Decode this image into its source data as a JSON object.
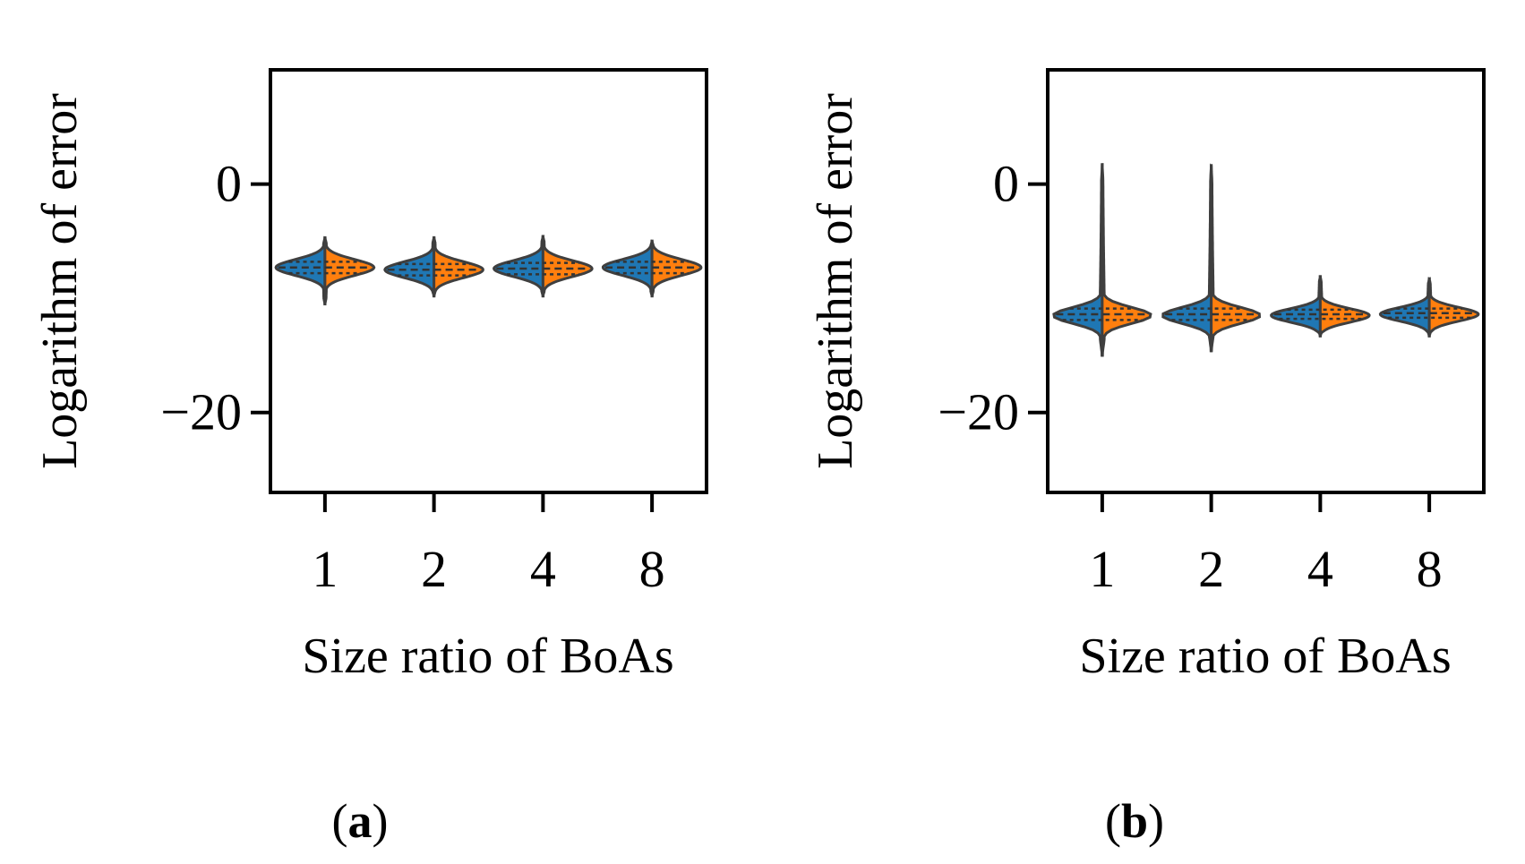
{
  "chart_data": [
    {
      "id": "a",
      "type": "violin",
      "caption": "a",
      "xlabel": "Size ratio of BoAs",
      "ylabel": "Logarithm of error",
      "categories": [
        "1",
        "2",
        "4",
        "8"
      ],
      "ylim": [
        -27,
        10
      ],
      "yticks": [
        0,
        -20
      ],
      "ytick_labels": [
        "0",
        "−20"
      ],
      "split": true,
      "series": [
        {
          "name": "left half",
          "color": "#1f77b4"
        },
        {
          "name": "right half",
          "color": "#ff7f0e"
        }
      ],
      "violins": [
        {
          "category": "1",
          "center": -7.3,
          "min": -10.5,
          "max": -4.7,
          "q1": -7.8,
          "median": -7.3,
          "q3": -6.8
        },
        {
          "category": "2",
          "center": -7.5,
          "min": -9.8,
          "max": -4.7,
          "q1": -8.0,
          "median": -7.5,
          "q3": -7.0
        },
        {
          "category": "4",
          "center": -7.4,
          "min": -9.8,
          "max": -4.6,
          "q1": -7.9,
          "median": -7.4,
          "q3": -6.9
        },
        {
          "category": "8",
          "center": -7.3,
          "min": -9.8,
          "max": -5.0,
          "q1": -7.8,
          "median": -7.3,
          "q3": -6.8
        }
      ]
    },
    {
      "id": "b",
      "type": "violin",
      "caption": "b",
      "xlabel": "Size ratio of BoAs",
      "ylabel": "Logarithm of error",
      "categories": [
        "1",
        "2",
        "4",
        "8"
      ],
      "ylim": [
        -27,
        10
      ],
      "yticks": [
        0,
        -20
      ],
      "ytick_labels": [
        "0",
        "−20"
      ],
      "split": true,
      "series": [
        {
          "name": "left half",
          "color": "#1f77b4"
        },
        {
          "name": "right half",
          "color": "#ff7f0e"
        }
      ],
      "violins": [
        {
          "category": "1",
          "center": -11.5,
          "min": -15.0,
          "max": 1.7,
          "q1": -11.9,
          "median": -11.4,
          "q3": -10.9
        },
        {
          "category": "2",
          "center": -11.5,
          "min": -14.6,
          "max": 1.6,
          "q1": -11.9,
          "median": -11.4,
          "q3": -10.9
        },
        {
          "category": "4",
          "center": -11.5,
          "min": -13.3,
          "max": -8.1,
          "q1": -11.8,
          "median": -11.4,
          "q3": -11.0
        },
        {
          "category": "8",
          "center": -11.4,
          "min": -13.3,
          "max": -8.3,
          "q1": -11.7,
          "median": -11.3,
          "q3": -10.9
        }
      ]
    }
  ]
}
